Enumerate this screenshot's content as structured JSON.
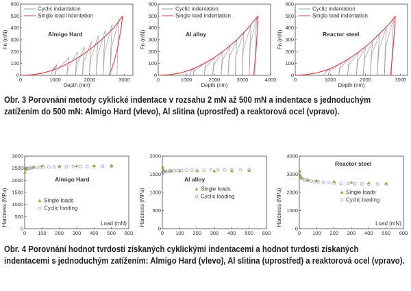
{
  "figure3": {
    "caption": "Obr. 3 Porovnání metody cyklické indentace v rozsahu 2 mN až 500 mN a indentace s jednoduchým zatížením do 500 mN: Almigo Hard (vlevo), Al slitina (uprostřed) a reaktorová ocel (vpravo)."
  },
  "figure4": {
    "caption": "Obr. 4 Porovnání hodnot tvrdosti získaných cyklickými indentacemi a hodnot tvrdosti získaných indentacemi s jednoduchým zatížením: Almigo Hard (vlevo), Al slitina (uprostřed) a reaktorová ocel (vpravo)."
  },
  "colors": {
    "cyclic": "#9a9a9a",
    "single_load": "#e03a3a",
    "single_marker": "#9aaa3a",
    "cyclic_marker": "#8888bb"
  },
  "chart_data": [
    {
      "type": "line",
      "label": "Almigo Hard",
      "xlabel": "Depth (nm)",
      "ylabel": "Fn (mN)",
      "xlim": [
        0,
        3250
      ],
      "ylim": [
        0,
        600
      ],
      "xticks": [
        0,
        1000,
        2000,
        3000
      ],
      "yticks": [
        0,
        100,
        200,
        300,
        400,
        500,
        600
      ],
      "legend": [
        "Cyclic indentation",
        "Single load indentation"
      ],
      "loading_curve": [
        [
          0,
          0
        ],
        [
          300,
          4
        ],
        [
          600,
          16
        ],
        [
          900,
          40
        ],
        [
          1200,
          75
        ],
        [
          1500,
          120
        ],
        [
          1800,
          175
        ],
        [
          2100,
          240
        ],
        [
          2400,
          315
        ],
        [
          2700,
          400
        ],
        [
          2950,
          500
        ]
      ],
      "unloading_curve": [
        [
          2950,
          500
        ],
        [
          2900,
          380
        ],
        [
          2820,
          250
        ],
        [
          2720,
          130
        ],
        [
          2620,
          40
        ],
        [
          2560,
          0
        ]
      ],
      "cycle_peaks": [
        [
          1050,
          90
        ],
        [
          1400,
          150
        ],
        [
          1650,
          200
        ],
        [
          1850,
          240
        ],
        [
          2050,
          285
        ],
        [
          2250,
          335
        ],
        [
          2450,
          380
        ],
        [
          2650,
          430
        ],
        [
          2850,
          475
        ]
      ]
    },
    {
      "type": "line",
      "label": "Al alloy",
      "xlabel": "Depth (nm)",
      "ylabel": "Fn (mN)",
      "xlim": [
        0,
        4000
      ],
      "ylim": [
        0,
        600
      ],
      "xticks": [
        0,
        1000,
        2000,
        3000,
        4000
      ],
      "yticks": [
        0,
        100,
        200,
        300,
        400,
        500,
        600
      ],
      "legend": [
        "Cyclic indentation",
        "Single load indentation"
      ],
      "loading_curve": [
        [
          0,
          0
        ],
        [
          400,
          5
        ],
        [
          800,
          20
        ],
        [
          1200,
          50
        ],
        [
          1600,
          95
        ],
        [
          2000,
          150
        ],
        [
          2400,
          220
        ],
        [
          2800,
          300
        ],
        [
          3200,
          400
        ],
        [
          3550,
          500
        ]
      ],
      "unloading_curve": [
        [
          3550,
          500
        ],
        [
          3520,
          350
        ],
        [
          3480,
          200
        ],
        [
          3430,
          80
        ],
        [
          3400,
          0
        ]
      ],
      "cycle_peaks": [
        [
          1300,
          60
        ],
        [
          1700,
          110
        ],
        [
          2000,
          150
        ],
        [
          2300,
          200
        ],
        [
          2550,
          250
        ],
        [
          2800,
          300
        ],
        [
          3050,
          360
        ],
        [
          3300,
          420
        ],
        [
          3500,
          480
        ]
      ]
    },
    {
      "type": "line",
      "label": "Reactor steel",
      "xlabel": "Depth (nm)",
      "ylabel": "Fn (mN)",
      "xlim": [
        0,
        3200
      ],
      "ylim": [
        0,
        600
      ],
      "xticks": [
        0,
        1000,
        2000,
        3000
      ],
      "yticks": [
        0,
        100,
        200,
        300,
        400,
        500,
        600
      ],
      "legend": [
        "Cyclic indentation",
        "Single load indentation"
      ],
      "loading_curve": [
        [
          0,
          0
        ],
        [
          300,
          5
        ],
        [
          600,
          20
        ],
        [
          900,
          45
        ],
        [
          1200,
          85
        ],
        [
          1500,
          135
        ],
        [
          1800,
          195
        ],
        [
          2100,
          265
        ],
        [
          2400,
          350
        ],
        [
          2700,
          440
        ],
        [
          2850,
          500
        ]
      ],
      "unloading_curve": [
        [
          2850,
          500
        ],
        [
          2820,
          350
        ],
        [
          2780,
          200
        ],
        [
          2740,
          80
        ],
        [
          2720,
          0
        ]
      ],
      "cycle_peaks": [
        [
          1000,
          60
        ],
        [
          1300,
          105
        ],
        [
          1550,
          150
        ],
        [
          1800,
          195
        ],
        [
          2000,
          235
        ],
        [
          2200,
          280
        ],
        [
          2400,
          345
        ],
        [
          2600,
          410
        ],
        [
          2800,
          480
        ]
      ]
    },
    {
      "type": "scatter",
      "label": "Almigo Hard",
      "xlabel": "Load (mN)",
      "ylabel": "Hardness (MPa)",
      "xlim": [
        0,
        600
      ],
      "ylim": [
        0,
        3000
      ],
      "xticks": [
        0,
        100,
        200,
        300,
        400,
        500,
        600
      ],
      "yticks": [
        0,
        500,
        1000,
        1500,
        2000,
        2500,
        3000
      ],
      "series": [
        {
          "name": "Single loads",
          "points": [
            [
              2,
              2330
            ],
            [
              5,
              2450
            ],
            [
              10,
              2500
            ],
            [
              50,
              2560
            ],
            [
              100,
              2600
            ],
            [
              200,
              2580
            ],
            [
              300,
              2590
            ],
            [
              400,
              2600
            ],
            [
              500,
              2610
            ]
          ]
        },
        {
          "name": "Cyclic loading",
          "points": [
            [
              2,
              2500
            ],
            [
              5,
              2480
            ],
            [
              10,
              2470
            ],
            [
              20,
              2490
            ],
            [
              30,
              2500
            ],
            [
              40,
              2520
            ],
            [
              50,
              2520
            ],
            [
              70,
              2530
            ],
            [
              90,
              2540
            ],
            [
              110,
              2550
            ],
            [
              140,
              2550
            ],
            [
              170,
              2550
            ],
            [
              200,
              2560
            ],
            [
              240,
              2560
            ],
            [
              280,
              2570
            ],
            [
              320,
              2570
            ],
            [
              360,
              2570
            ],
            [
              400,
              2570
            ],
            [
              450,
              2580
            ],
            [
              500,
              2580
            ]
          ]
        }
      ]
    },
    {
      "type": "scatter",
      "label": "Al alloy",
      "xlabel": "",
      "ylabel": "Hardness (MPa)",
      "xlim": [
        0,
        600
      ],
      "ylim": [
        0,
        2000
      ],
      "xticks": [
        0,
        100,
        200,
        300,
        400,
        500,
        600
      ],
      "yticks": [
        0,
        500,
        1000,
        1500,
        2000
      ],
      "series": [
        {
          "name": "Single loads",
          "points": [
            [
              2,
              1700
            ],
            [
              5,
              1630
            ],
            [
              10,
              1600
            ],
            [
              50,
              1590
            ],
            [
              100,
              1590
            ],
            [
              200,
              1590
            ],
            [
              300,
              1590
            ],
            [
              400,
              1590
            ],
            [
              500,
              1600
            ]
          ]
        },
        {
          "name": "Cyclic loading",
          "points": [
            [
              2,
              1550
            ],
            [
              5,
              1560
            ],
            [
              10,
              1570
            ],
            [
              20,
              1570
            ],
            [
              30,
              1580
            ],
            [
              40,
              1590
            ],
            [
              50,
              1590
            ],
            [
              70,
              1600
            ],
            [
              90,
              1600
            ],
            [
              110,
              1600
            ],
            [
              140,
              1610
            ],
            [
              170,
              1610
            ],
            [
              200,
              1610
            ],
            [
              240,
              1610
            ],
            [
              280,
              1620
            ],
            [
              320,
              1620
            ],
            [
              360,
              1620
            ],
            [
              400,
              1620
            ],
            [
              450,
              1620
            ],
            [
              500,
              1620
            ]
          ]
        }
      ]
    },
    {
      "type": "scatter",
      "label": "Reactor steel",
      "xlabel": "Load (mN)",
      "ylabel": "Hardness (MPa)",
      "xlim": [
        0,
        600
      ],
      "ylim": [
        0,
        4000
      ],
      "xticks": [
        0,
        100,
        200,
        300,
        400,
        500,
        600
      ],
      "yticks": [
        0,
        1000,
        2000,
        3000,
        4000
      ],
      "series": [
        {
          "name": "Single loads",
          "points": [
            [
              2,
              3200
            ],
            [
              5,
              2900
            ],
            [
              10,
              2800
            ],
            [
              50,
              2700
            ],
            [
              100,
              2650
            ],
            [
              200,
              2600
            ],
            [
              300,
              2550
            ],
            [
              400,
              2520
            ],
            [
              500,
              2500
            ]
          ]
        },
        {
          "name": "Cyclic loading",
          "points": [
            [
              2,
              3050
            ],
            [
              5,
              2900
            ],
            [
              10,
              2800
            ],
            [
              20,
              2750
            ],
            [
              30,
              2700
            ],
            [
              40,
              2680
            ],
            [
              50,
              2650
            ],
            [
              70,
              2620
            ],
            [
              90,
              2600
            ],
            [
              110,
              2580
            ],
            [
              140,
              2560
            ],
            [
              170,
              2540
            ],
            [
              200,
              2520
            ],
            [
              240,
              2500
            ],
            [
              280,
              2490
            ],
            [
              320,
              2480
            ],
            [
              360,
              2470
            ],
            [
              400,
              2460
            ],
            [
              450,
              2450
            ],
            [
              500,
              2440
            ]
          ]
        }
      ]
    }
  ]
}
